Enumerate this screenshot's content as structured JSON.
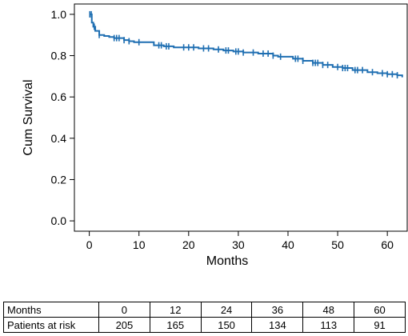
{
  "chart_data": {
    "type": "line",
    "xlabel": "Months",
    "ylabel": "Cum Survival",
    "xlim": [
      -3,
      64
    ],
    "ylim": [
      -0.05,
      1.05
    ],
    "x_ticks": [
      0,
      10,
      20,
      30,
      40,
      50,
      60
    ],
    "y_ticks": [
      0.0,
      0.2,
      0.4,
      0.6,
      0.8,
      1.0
    ],
    "y_tick_labels": [
      "0.0",
      "0.2",
      "0.4",
      "0.6",
      "0.8",
      "1.0"
    ],
    "grid": false,
    "line_color": "#1f6fb2",
    "series": [
      {
        "step_x": [
          0,
          0.5,
          0.8,
          1.2,
          2,
          3,
          4,
          5,
          7,
          8,
          9,
          13,
          15,
          17,
          22,
          25,
          27,
          29,
          31,
          34,
          37,
          38,
          41,
          43,
          45,
          47,
          49,
          51,
          53,
          56,
          58,
          60,
          62,
          63
        ],
        "step_y": [
          1.0,
          0.96,
          0.94,
          0.92,
          0.9,
          0.895,
          0.89,
          0.885,
          0.875,
          0.87,
          0.865,
          0.85,
          0.845,
          0.84,
          0.835,
          0.83,
          0.825,
          0.82,
          0.815,
          0.81,
          0.8,
          0.795,
          0.785,
          0.775,
          0.765,
          0.755,
          0.745,
          0.74,
          0.73,
          0.72,
          0.715,
          0.71,
          0.705,
          0.695
        ],
        "censor_x": [
          0.1,
          0.4,
          1,
          2,
          5,
          5.5,
          6,
          7,
          8,
          10,
          14,
          14.5,
          15.5,
          16,
          19,
          20,
          21,
          23,
          24,
          26,
          27.5,
          28,
          29.5,
          30,
          31,
          33,
          35,
          36,
          37,
          38.5,
          41.5,
          42,
          43,
          45,
          45.5,
          46,
          47,
          48,
          50,
          51,
          51.5,
          52,
          53.5,
          54,
          55,
          57,
          59,
          60,
          61,
          62
        ]
      }
    ]
  },
  "risk_table": {
    "header_label": "Months",
    "months": [
      "0",
      "12",
      "24",
      "36",
      "48",
      "60"
    ],
    "row_label": "Patients at risk",
    "counts": [
      "205",
      "165",
      "150",
      "134",
      "113",
      "91"
    ]
  }
}
